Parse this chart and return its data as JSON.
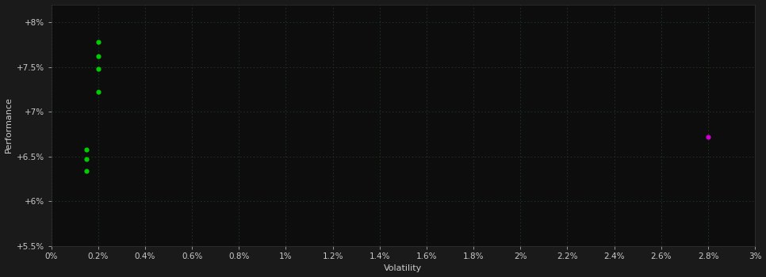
{
  "background_color": "#1a1a1a",
  "plot_bg_color": "#0d0d0d",
  "grid_color": "#1e3a1e",
  "text_color": "#cccccc",
  "xlabel": "Volatility",
  "ylabel": "Performance",
  "xlim": [
    0.0,
    0.03
  ],
  "ylim": [
    0.055,
    0.082
  ],
  "x_ticks": [
    0.0,
    0.002,
    0.004,
    0.006,
    0.008,
    0.01,
    0.012,
    0.014,
    0.016,
    0.018,
    0.02,
    0.022,
    0.024,
    0.026,
    0.028,
    0.03
  ],
  "x_tick_labels": [
    "0%",
    "0.2%",
    "0.4%",
    "0.6%",
    "0.8%",
    "1%",
    "1.2%",
    "1.4%",
    "1.6%",
    "1.8%",
    "2%",
    "2.2%",
    "2.4%",
    "2.6%",
    "2.8%",
    "3%"
  ],
  "y_ticks": [
    0.055,
    0.06,
    0.065,
    0.07,
    0.075,
    0.08
  ],
  "y_tick_labels": [
    "+5.5%",
    "+6%",
    "+6.5%",
    "+7%",
    "+7.5%",
    "+8%"
  ],
  "green_points": [
    [
      0.002,
      0.0778
    ],
    [
      0.002,
      0.0762
    ],
    [
      0.002,
      0.0748
    ],
    [
      0.002,
      0.0722
    ],
    [
      0.0015,
      0.0658
    ],
    [
      0.0015,
      0.0647
    ],
    [
      0.0015,
      0.0634
    ]
  ],
  "magenta_points": [
    [
      0.028,
      0.0672
    ]
  ],
  "green_color": "#00cc00",
  "magenta_color": "#cc00cc",
  "marker_size": 20
}
